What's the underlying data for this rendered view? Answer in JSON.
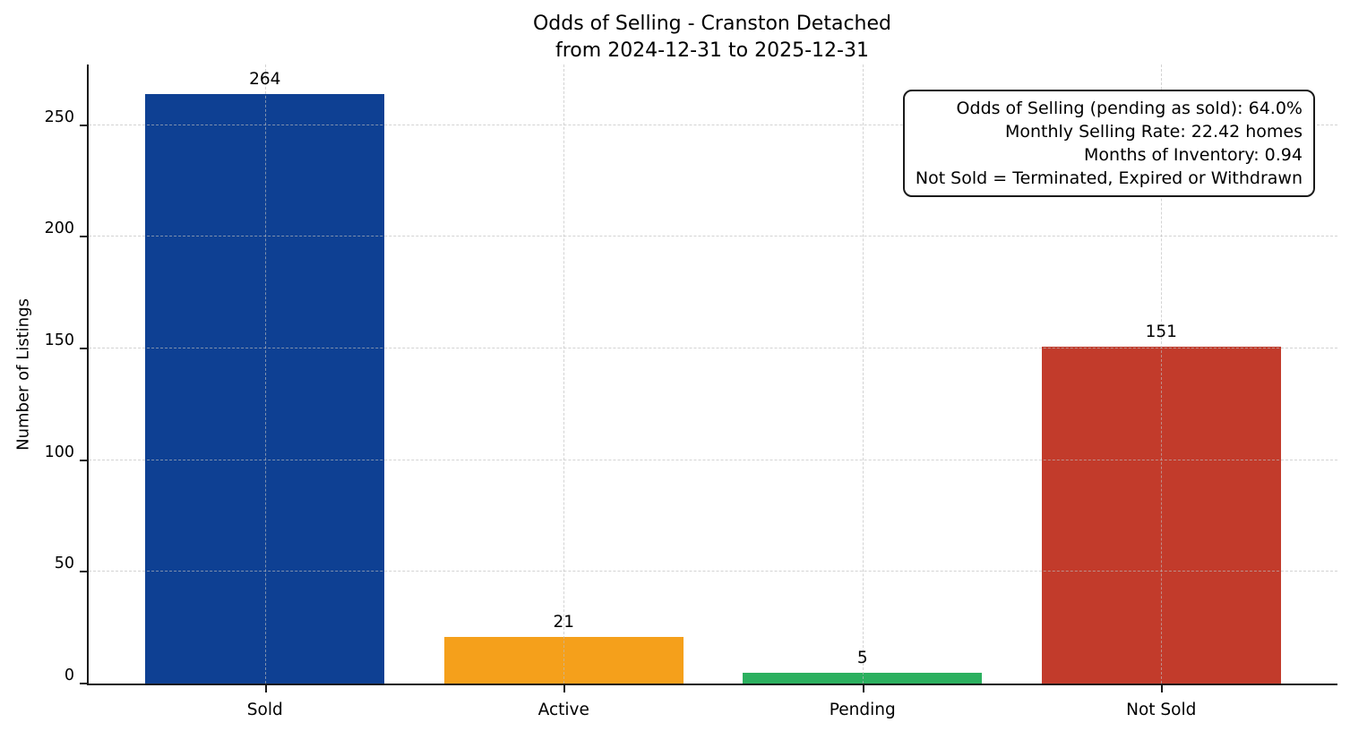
{
  "title": {
    "line1": "Odds of Selling - Cranston Detached",
    "line2": "from 2024-12-31 to 2025-12-31"
  },
  "chart_data": {
    "type": "bar",
    "title": "Odds of Selling - Cranston Detached",
    "subtitle": "from 2024-12-31 to 2025-12-31",
    "categories": [
      "Sold",
      "Active",
      "Pending",
      "Not Sold"
    ],
    "values": [
      264,
      21,
      5,
      151
    ],
    "bar_colors": [
      "#0e4093",
      "#f5a01b",
      "#2bb05f",
      "#c23b2b"
    ],
    "xlabel": "",
    "ylabel": "Number of Listings",
    "ylim": [
      0,
      277.2
    ],
    "yticks": [
      0,
      50,
      100,
      150,
      200,
      250
    ],
    "grid": true,
    "grid_style": "dashed",
    "legend": "none",
    "value_labels_shown": true,
    "annotation_lines": [
      "Odds of Selling (pending as sold): 64.0%",
      "Monthly Selling Rate: 22.42 homes",
      "Months of Inventory: 0.94",
      "Not Sold = Terminated, Expired or Withdrawn"
    ],
    "spine_color": "#1a1a1a",
    "background_color": "#ffffff"
  }
}
